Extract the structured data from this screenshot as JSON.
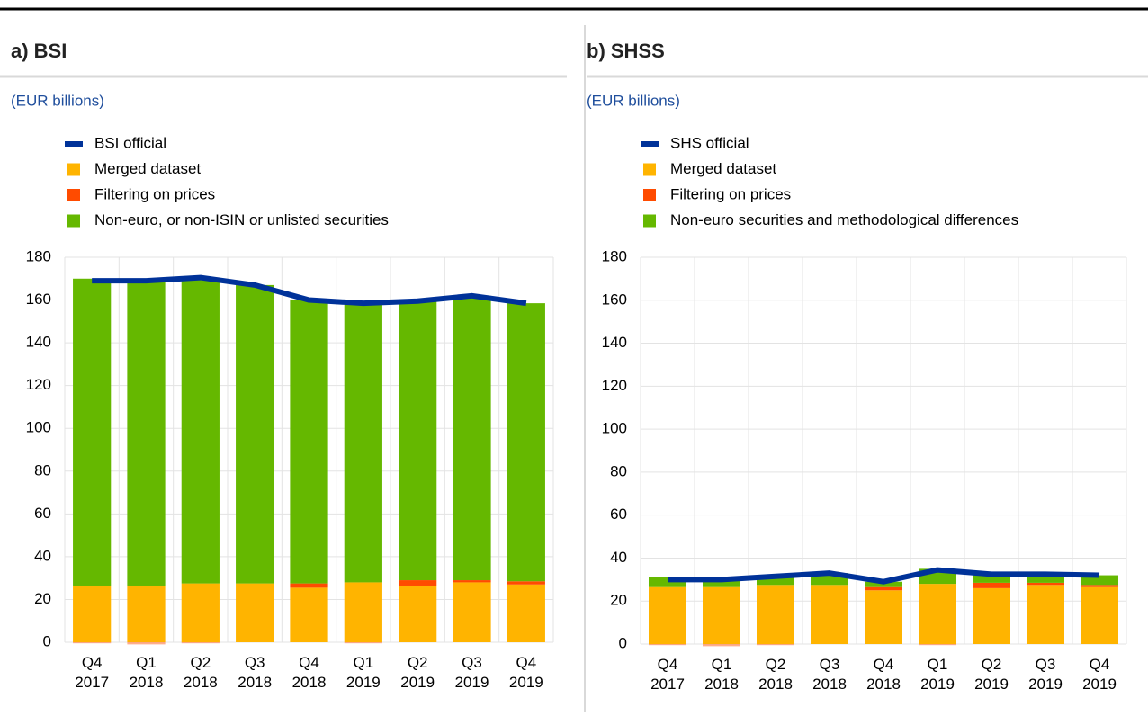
{
  "chart_data": [
    {
      "type": "bar",
      "stacked": true,
      "title": "a) BSI",
      "subtitle": "(EUR billions)",
      "categories": [
        "Q4 2017",
        "Q1 2018",
        "Q2 2018",
        "Q3 2018",
        "Q4 2018",
        "Q1 2019",
        "Q2 2019",
        "Q3 2019",
        "Q4 2019"
      ],
      "series": [
        {
          "name": "BSI official",
          "type": "line",
          "color": "#003299",
          "values": [
            169,
            169,
            170.5,
            167,
            160,
            158.5,
            159.5,
            162,
            158.5
          ]
        },
        {
          "name": "Merged dataset",
          "type": "bar",
          "color": "#ffb400",
          "values": [
            26.5,
            26.5,
            27.5,
            27.5,
            25.5,
            28,
            26.5,
            28,
            27
          ]
        },
        {
          "name": "Filtering on prices",
          "type": "bar",
          "color": "#ff4b00",
          "values": [
            -0.5,
            -1,
            -0.5,
            0,
            2,
            -0.5,
            2.5,
            1,
            1.5
          ]
        },
        {
          "name": "Non-euro, or non-ISIN or unlisted securities",
          "type": "bar",
          "color": "#65b800",
          "values": [
            143.5,
            142.5,
            142.5,
            139.5,
            132.5,
            130.5,
            130.5,
            133,
            130
          ]
        }
      ],
      "ylim": [
        0,
        180
      ],
      "yticks": [
        0,
        20,
        40,
        60,
        80,
        100,
        120,
        140,
        160,
        180
      ],
      "grid": true
    },
    {
      "type": "bar",
      "stacked": true,
      "title": "b) SHSS",
      "subtitle": "(EUR billions)",
      "categories": [
        "Q4 2017",
        "Q1 2018",
        "Q2 2018",
        "Q3 2018",
        "Q4 2018",
        "Q1 2019",
        "Q2 2019",
        "Q3 2019",
        "Q4 2019"
      ],
      "series": [
        {
          "name": "SHS official",
          "type": "line",
          "color": "#003299",
          "values": [
            30,
            30,
            31.5,
            33,
            29,
            34.5,
            32.5,
            32.5,
            32
          ]
        },
        {
          "name": "Merged dataset",
          "type": "bar",
          "color": "#ffb400",
          "values": [
            26.5,
            26.5,
            27.5,
            27.5,
            25,
            28,
            26,
            27.5,
            26.5
          ]
        },
        {
          "name": "Filtering on prices",
          "type": "bar",
          "color": "#ff4b00",
          "values": [
            -0.5,
            -1,
            -0.5,
            0,
            1.5,
            -0.5,
            2.5,
            1,
            1
          ]
        },
        {
          "name": "Non-euro securities and methodological differences",
          "type": "bar",
          "color": "#65b800",
          "values": [
            4.5,
            4,
            4.5,
            5.5,
            2.5,
            7,
            3.5,
            3.5,
            4.5
          ]
        }
      ],
      "ylim": [
        0,
        180
      ],
      "yticks": [
        0,
        20,
        40,
        60,
        80,
        100,
        120,
        140,
        160,
        180
      ],
      "grid": true
    }
  ]
}
